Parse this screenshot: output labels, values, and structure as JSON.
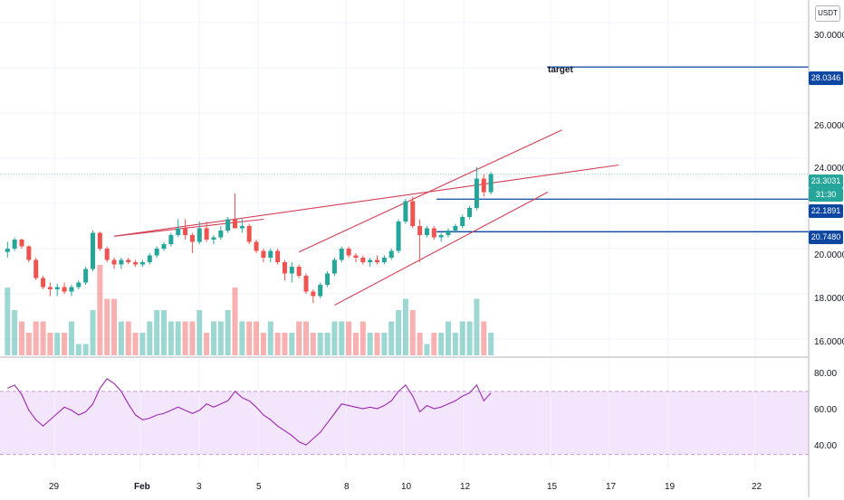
{
  "currency_badge": "USDT",
  "price_axis": {
    "ticks": [
      "30.0000",
      "28.0346",
      "26.0000",
      "24.0000",
      "23.3031",
      "22.1891",
      "20.7480",
      "20.0000",
      "18.0000",
      "16.0000"
    ]
  },
  "rsi_axis": {
    "ticks": [
      "80.00",
      "60.00",
      "40.00"
    ]
  },
  "time_axis": {
    "ticks": [
      "29",
      "Feb",
      "3",
      "5",
      "8",
      "10",
      "12",
      "15",
      "17",
      "19",
      "22"
    ]
  },
  "tags": {
    "last_price": "23.3031",
    "countdown": "31:30",
    "level_high": "22.1891",
    "level_low": "20.7480",
    "target": "28.0346"
  },
  "annotations": {
    "target_label": "target"
  },
  "colors": {
    "up": "#26a69a",
    "down": "#ef5350",
    "level_line": "#0d47a1",
    "trend_line": "#d33f55",
    "rsi_line": "#9c27b0",
    "rsi_band": "#f3e5fc"
  },
  "chart_data": [
    {
      "type": "candlestick",
      "ohlc": [
        [
          19.85,
          20.3,
          19.6,
          20.0
        ],
        [
          20.0,
          20.5,
          19.9,
          20.4
        ],
        [
          20.4,
          20.45,
          20.0,
          20.1
        ],
        [
          20.1,
          20.15,
          19.4,
          19.5
        ],
        [
          19.5,
          19.6,
          18.6,
          18.7
        ],
        [
          18.7,
          18.8,
          18.2,
          18.3
        ],
        [
          18.3,
          18.5,
          17.9,
          18.2
        ],
        [
          18.2,
          18.45,
          17.9,
          18.3
        ],
        [
          18.3,
          18.5,
          18.0,
          18.1
        ],
        [
          18.1,
          18.4,
          17.9,
          18.3
        ],
        [
          18.3,
          18.6,
          18.2,
          18.5
        ],
        [
          18.5,
          19.2,
          18.4,
          19.1
        ],
        [
          19.1,
          20.8,
          19.0,
          20.7
        ],
        [
          20.7,
          20.75,
          19.9,
          20.0
        ],
        [
          20.0,
          20.1,
          19.4,
          19.5
        ],
        [
          19.5,
          19.6,
          19.1,
          19.3
        ],
        [
          19.3,
          19.6,
          19.1,
          19.5
        ],
        [
          19.5,
          19.6,
          19.3,
          19.4
        ],
        [
          19.4,
          19.5,
          19.2,
          19.3
        ],
        [
          19.3,
          19.5,
          19.2,
          19.4
        ],
        [
          19.4,
          19.8,
          19.3,
          19.7
        ],
        [
          19.7,
          20.1,
          19.6,
          20.0
        ],
        [
          20.0,
          20.3,
          19.9,
          20.2
        ],
        [
          20.2,
          20.7,
          20.1,
          20.6
        ],
        [
          20.6,
          21.3,
          20.5,
          20.9
        ],
        [
          20.9,
          21.3,
          20.4,
          20.6
        ],
        [
          20.6,
          20.7,
          19.8,
          20.3
        ],
        [
          20.3,
          21.2,
          20.2,
          20.9
        ],
        [
          20.9,
          21.2,
          20.3,
          20.4
        ],
        [
          20.4,
          20.6,
          20.2,
          20.5
        ],
        [
          20.5,
          21.0,
          20.4,
          20.8
        ],
        [
          20.8,
          21.4,
          20.7,
          21.3
        ],
        [
          21.3,
          22.45,
          20.9,
          20.9
        ],
        [
          20.9,
          21.3,
          20.7,
          21.0
        ],
        [
          21.0,
          21.1,
          20.2,
          20.3
        ],
        [
          20.3,
          20.4,
          19.8,
          19.9
        ],
        [
          19.9,
          20.0,
          19.4,
          19.6
        ],
        [
          19.6,
          20.0,
          19.4,
          19.9
        ],
        [
          19.9,
          20.0,
          19.3,
          19.4
        ],
        [
          19.4,
          19.5,
          18.6,
          18.9
        ],
        [
          18.9,
          19.4,
          18.5,
          19.2
        ],
        [
          19.2,
          19.3,
          18.7,
          18.8
        ],
        [
          18.8,
          18.9,
          18.0,
          18.1
        ],
        [
          18.1,
          18.2,
          17.6,
          17.9
        ],
        [
          17.9,
          18.5,
          17.8,
          18.4
        ],
        [
          18.4,
          19.0,
          18.3,
          18.9
        ],
        [
          18.9,
          19.6,
          18.8,
          19.5
        ],
        [
          19.5,
          20.1,
          19.4,
          20.0
        ],
        [
          20.0,
          20.1,
          19.6,
          19.7
        ],
        [
          19.7,
          19.8,
          19.4,
          19.6
        ],
        [
          19.6,
          19.7,
          19.3,
          19.4
        ],
        [
          19.4,
          19.6,
          19.2,
          19.5
        ],
        [
          19.5,
          19.7,
          19.3,
          19.4
        ],
        [
          19.4,
          19.7,
          19.3,
          19.6
        ],
        [
          19.6,
          20.0,
          19.5,
          19.9
        ],
        [
          19.9,
          21.3,
          19.8,
          21.2
        ],
        [
          21.2,
          22.2,
          21.1,
          22.1
        ],
        [
          22.1,
          22.3,
          20.9,
          21.0
        ],
        [
          21.0,
          21.3,
          19.4,
          20.6
        ],
        [
          20.6,
          21.0,
          20.5,
          20.9
        ],
        [
          20.9,
          21.0,
          20.4,
          20.5
        ],
        [
          20.5,
          20.7,
          20.3,
          20.6
        ],
        [
          20.6,
          20.9,
          20.5,
          20.8
        ],
        [
          20.8,
          21.1,
          20.7,
          21.0
        ],
        [
          21.0,
          21.5,
          20.9,
          21.4
        ],
        [
          21.4,
          21.9,
          21.3,
          21.8
        ],
        [
          21.8,
          23.6,
          21.7,
          23.1
        ],
        [
          23.1,
          23.3,
          22.3,
          22.5
        ],
        [
          22.5,
          23.4,
          22.4,
          23.3
        ]
      ],
      "volume": [
        6,
        4,
        3,
        2,
        3,
        3,
        2,
        2,
        2,
        3,
        1,
        1,
        4,
        8,
        5,
        5,
        3,
        3,
        2,
        2,
        3,
        4,
        4,
        3,
        3,
        3,
        3,
        4,
        2,
        3,
        3,
        4,
        6,
        3,
        3,
        3,
        2,
        3,
        2,
        2,
        2,
        3,
        3,
        2,
        2,
        2,
        3,
        3,
        3,
        2,
        3,
        2,
        2,
        2,
        3,
        4,
        5,
        4,
        2,
        1,
        2,
        2,
        3,
        2,
        3,
        3,
        5,
        3,
        2
      ],
      "horizontal_levels": [
        22.1891,
        20.748
      ],
      "target_level": 28.0346,
      "price_range": [
        15.2,
        31.0
      ]
    },
    {
      "type": "line",
      "name": "RSI",
      "values": [
        72,
        74,
        68,
        58,
        52,
        48,
        52,
        56,
        60,
        58,
        55,
        57,
        62,
        72,
        78,
        75,
        70,
        62,
        55,
        52,
        53,
        55,
        56,
        58,
        60,
        58,
        56,
        58,
        62,
        60,
        62,
        64,
        70,
        66,
        64,
        60,
        55,
        52,
        48,
        45,
        42,
        38,
        36,
        40,
        44,
        50,
        56,
        62,
        61,
        60,
        59,
        60,
        59,
        61,
        64,
        70,
        74,
        67,
        57,
        61,
        59,
        60,
        62,
        64,
        67,
        69,
        74,
        64,
        69
      ],
      "ylim": [
        20,
        90
      ],
      "band": [
        30,
        70
      ]
    }
  ]
}
